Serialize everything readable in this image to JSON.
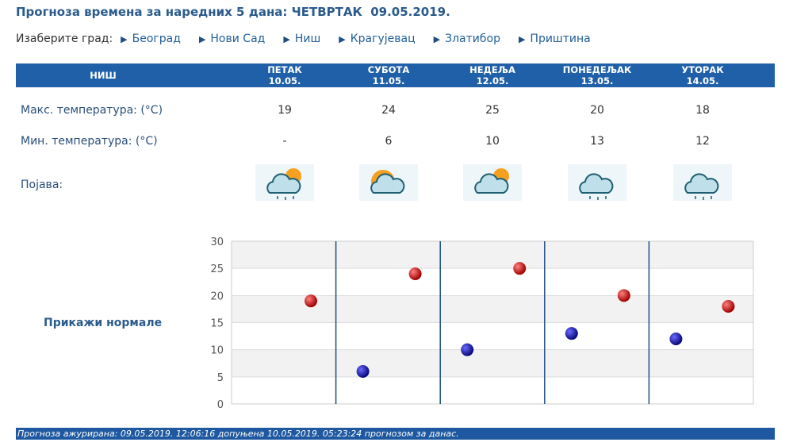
{
  "title": "Прогноза времена за наредних 5 дана: ЧЕТВРТАК  09.05.2019.",
  "city_label": "Изаберите град:",
  "cities": [
    "Београд",
    "Нови Сад",
    "Ниш",
    "Крагујевац",
    "Златибор",
    "Приштина"
  ],
  "table": {
    "city": "НИШ",
    "days": [
      {
        "name": "ПЕТАК",
        "date": "10.05."
      },
      {
        "name": "СУБОТА",
        "date": "11.05."
      },
      {
        "name": "НЕДЕЉА",
        "date": "12.05."
      },
      {
        "name": "ПОНЕДЕЉАК",
        "date": "13.05."
      },
      {
        "name": "УТОРАК",
        "date": "14.05."
      }
    ],
    "max_label": "Макс. температура: (°C)",
    "min_label": "Мин. температура: (°C)",
    "phen_label": "Појава:",
    "max": [
      "19",
      "24",
      "25",
      "20",
      "18"
    ],
    "min": [
      "-",
      "6",
      "10",
      "13",
      "12"
    ],
    "icons": [
      "partly-cloudy-light-rain-icon",
      "sunny-cloudy-icon",
      "cloudy-sun-icon",
      "cloud-rain-icon",
      "cloud-rain-icon"
    ]
  },
  "show_normals": "Прикажи нормале",
  "chart_data": {
    "type": "scatter",
    "yticks": [
      "0",
      "5",
      "10",
      "15",
      "20",
      "25",
      "30"
    ],
    "ylim": [
      0,
      30
    ],
    "series": [
      {
        "name": "min",
        "color": "#1a1aa0",
        "values": [
          null,
          6,
          10,
          13,
          12
        ]
      },
      {
        "name": "max",
        "color": "#c01010",
        "values": [
          19,
          24,
          25,
          20,
          18
        ]
      }
    ]
  },
  "footer": "Прогноза ажурирана:  09.05.2019. 12:06:16 допуњена 10.05.2019. 05:23:24 прогнозом за данас."
}
